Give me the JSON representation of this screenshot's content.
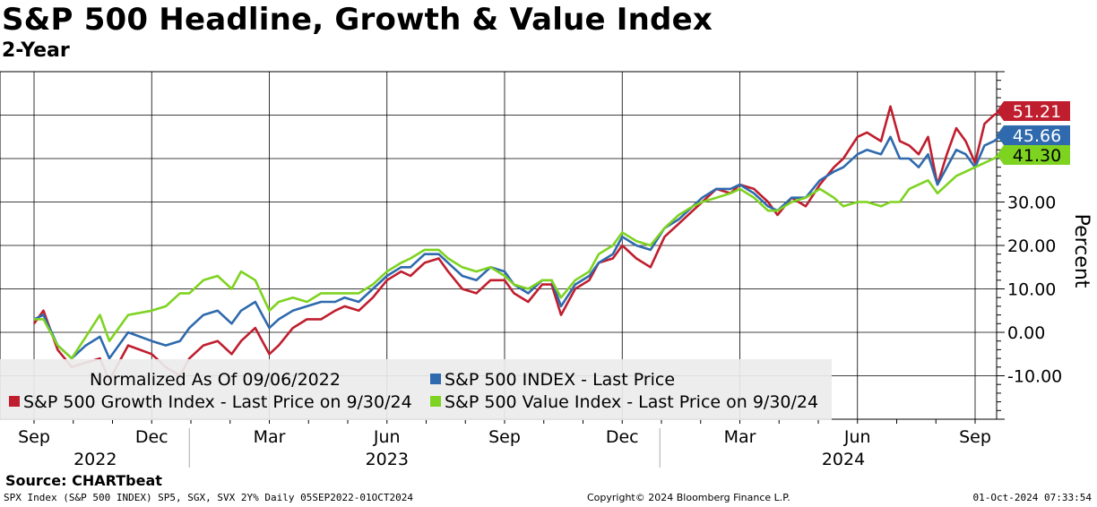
{
  "header": {
    "title": "S&P 500 Headline, Growth & Value Index",
    "subtitle": "2-Year"
  },
  "colors": {
    "growth": "#bf1e2e",
    "headline": "#2e6aad",
    "value": "#7ed321",
    "grid": "#000000",
    "background": "#ffffff"
  },
  "chart_data": {
    "type": "line",
    "ylabel": "Percent",
    "ylim": [
      -20,
      60
    ],
    "y_ticks": [
      "-10.00",
      "0.00",
      "10.00",
      "20.00",
      "30.00"
    ],
    "y_tick_values": [
      -10,
      0,
      10,
      20,
      30
    ],
    "month_ticks": [
      "Sep",
      "Dec",
      "Mar",
      "Jun",
      "Sep",
      "Dec",
      "Mar",
      "Jun",
      "Sep"
    ],
    "month_tick_pos": [
      0.0,
      0.25,
      0.5,
      0.75,
      1.0,
      1.25,
      1.5,
      1.75,
      2.0
    ],
    "year_labels": [
      "2022",
      "2023",
      "2024"
    ],
    "year_label_pos": [
      0.13,
      0.75,
      1.72
    ],
    "x_range_years": [
      0.0,
      2.07
    ],
    "series": [
      {
        "name": "S&P 500 Growth Index - Last Price on 9/30/24",
        "key": "growth",
        "last_label": "51.21",
        "last": 51.21,
        "points": [
          [
            0.0,
            2
          ],
          [
            0.02,
            5
          ],
          [
            0.05,
            -4
          ],
          [
            0.08,
            -8
          ],
          [
            0.11,
            -7
          ],
          [
            0.14,
            -6
          ],
          [
            0.16,
            -11
          ],
          [
            0.2,
            -3
          ],
          [
            0.25,
            -5
          ],
          [
            0.28,
            -8
          ],
          [
            0.31,
            -10
          ],
          [
            0.33,
            -6
          ],
          [
            0.36,
            -3
          ],
          [
            0.39,
            -2
          ],
          [
            0.42,
            -5
          ],
          [
            0.44,
            -2
          ],
          [
            0.47,
            1
          ],
          [
            0.5,
            -5
          ],
          [
            0.52,
            -3
          ],
          [
            0.55,
            1
          ],
          [
            0.58,
            3
          ],
          [
            0.61,
            3
          ],
          [
            0.64,
            5
          ],
          [
            0.66,
            6
          ],
          [
            0.69,
            5
          ],
          [
            0.72,
            8
          ],
          [
            0.75,
            12
          ],
          [
            0.78,
            14
          ],
          [
            0.8,
            13
          ],
          [
            0.83,
            16
          ],
          [
            0.86,
            17
          ],
          [
            0.88,
            14
          ],
          [
            0.91,
            10
          ],
          [
            0.94,
            9
          ],
          [
            0.97,
            12
          ],
          [
            1.0,
            12
          ],
          [
            1.02,
            9
          ],
          [
            1.05,
            7
          ],
          [
            1.08,
            11
          ],
          [
            1.1,
            11
          ],
          [
            1.12,
            4
          ],
          [
            1.15,
            10
          ],
          [
            1.18,
            12
          ],
          [
            1.2,
            16
          ],
          [
            1.23,
            17
          ],
          [
            1.25,
            20
          ],
          [
            1.28,
            17
          ],
          [
            1.31,
            15
          ],
          [
            1.34,
            22
          ],
          [
            1.37,
            25
          ],
          [
            1.4,
            28
          ],
          [
            1.42,
            30
          ],
          [
            1.45,
            33
          ],
          [
            1.48,
            32
          ],
          [
            1.5,
            34
          ],
          [
            1.53,
            33
          ],
          [
            1.56,
            30
          ],
          [
            1.58,
            27
          ],
          [
            1.61,
            31
          ],
          [
            1.64,
            29
          ],
          [
            1.67,
            34
          ],
          [
            1.7,
            38
          ],
          [
            1.72,
            40
          ],
          [
            1.75,
            45
          ],
          [
            1.77,
            46
          ],
          [
            1.8,
            44
          ],
          [
            1.82,
            52
          ],
          [
            1.84,
            44
          ],
          [
            1.86,
            43
          ],
          [
            1.88,
            41
          ],
          [
            1.9,
            45
          ],
          [
            1.92,
            34
          ],
          [
            1.94,
            41
          ],
          [
            1.96,
            47
          ],
          [
            1.98,
            44
          ],
          [
            2.0,
            39
          ],
          [
            2.02,
            48
          ],
          [
            2.04,
            50
          ],
          [
            2.06,
            51.21
          ]
        ]
      },
      {
        "name": "S&P 500 INDEX - Last Price",
        "key": "headline",
        "last_label": "45.66",
        "last": 45.66,
        "points": [
          [
            0.0,
            3
          ],
          [
            0.02,
            4
          ],
          [
            0.05,
            -3
          ],
          [
            0.08,
            -6
          ],
          [
            0.11,
            -3
          ],
          [
            0.14,
            -1
          ],
          [
            0.16,
            -6
          ],
          [
            0.2,
            0
          ],
          [
            0.25,
            -2
          ],
          [
            0.28,
            -3
          ],
          [
            0.31,
            -2
          ],
          [
            0.33,
            1
          ],
          [
            0.36,
            4
          ],
          [
            0.39,
            5
          ],
          [
            0.42,
            2
          ],
          [
            0.44,
            5
          ],
          [
            0.47,
            7
          ],
          [
            0.5,
            1
          ],
          [
            0.52,
            3
          ],
          [
            0.55,
            5
          ],
          [
            0.58,
            6
          ],
          [
            0.61,
            7
          ],
          [
            0.64,
            7
          ],
          [
            0.66,
            8
          ],
          [
            0.69,
            7
          ],
          [
            0.72,
            10
          ],
          [
            0.75,
            13
          ],
          [
            0.78,
            15
          ],
          [
            0.8,
            15
          ],
          [
            0.83,
            18
          ],
          [
            0.86,
            18
          ],
          [
            0.88,
            16
          ],
          [
            0.91,
            13
          ],
          [
            0.94,
            12
          ],
          [
            0.97,
            15
          ],
          [
            1.0,
            14
          ],
          [
            1.02,
            11
          ],
          [
            1.05,
            9
          ],
          [
            1.08,
            12
          ],
          [
            1.1,
            12
          ],
          [
            1.12,
            6
          ],
          [
            1.15,
            11
          ],
          [
            1.18,
            13
          ],
          [
            1.2,
            16
          ],
          [
            1.23,
            18
          ],
          [
            1.25,
            22
          ],
          [
            1.28,
            20
          ],
          [
            1.31,
            19
          ],
          [
            1.34,
            24
          ],
          [
            1.37,
            26
          ],
          [
            1.4,
            29
          ],
          [
            1.42,
            31
          ],
          [
            1.45,
            33
          ],
          [
            1.48,
            33
          ],
          [
            1.5,
            34
          ],
          [
            1.53,
            32
          ],
          [
            1.56,
            29
          ],
          [
            1.58,
            28
          ],
          [
            1.61,
            31
          ],
          [
            1.64,
            31
          ],
          [
            1.67,
            35
          ],
          [
            1.7,
            37
          ],
          [
            1.72,
            38
          ],
          [
            1.75,
            41
          ],
          [
            1.77,
            42
          ],
          [
            1.8,
            41
          ],
          [
            1.82,
            45
          ],
          [
            1.84,
            40
          ],
          [
            1.86,
            40
          ],
          [
            1.88,
            38
          ],
          [
            1.9,
            41
          ],
          [
            1.92,
            34
          ],
          [
            1.94,
            38
          ],
          [
            1.96,
            42
          ],
          [
            1.98,
            41
          ],
          [
            2.0,
            38
          ],
          [
            2.02,
            43
          ],
          [
            2.04,
            44
          ],
          [
            2.06,
            45.66
          ]
        ]
      },
      {
        "name": "S&P 500 Value Index - Last Price on 9/30/24",
        "key": "value",
        "last_label": "41.30",
        "last": 41.3,
        "points": [
          [
            0.0,
            3
          ],
          [
            0.02,
            3
          ],
          [
            0.05,
            -3
          ],
          [
            0.08,
            -6
          ],
          [
            0.11,
            -1
          ],
          [
            0.14,
            4
          ],
          [
            0.16,
            -2
          ],
          [
            0.2,
            4
          ],
          [
            0.25,
            5
          ],
          [
            0.28,
            6
          ],
          [
            0.31,
            9
          ],
          [
            0.33,
            9
          ],
          [
            0.36,
            12
          ],
          [
            0.39,
            13
          ],
          [
            0.42,
            10
          ],
          [
            0.44,
            14
          ],
          [
            0.47,
            12
          ],
          [
            0.5,
            5
          ],
          [
            0.52,
            7
          ],
          [
            0.55,
            8
          ],
          [
            0.58,
            7
          ],
          [
            0.61,
            9
          ],
          [
            0.64,
            9
          ],
          [
            0.66,
            9
          ],
          [
            0.69,
            9
          ],
          [
            0.72,
            11
          ],
          [
            0.75,
            14
          ],
          [
            0.78,
            16
          ],
          [
            0.8,
            17
          ],
          [
            0.83,
            19
          ],
          [
            0.86,
            19
          ],
          [
            0.88,
            17
          ],
          [
            0.91,
            15
          ],
          [
            0.94,
            14
          ],
          [
            0.97,
            15
          ],
          [
            1.0,
            13
          ],
          [
            1.02,
            11
          ],
          [
            1.05,
            10
          ],
          [
            1.08,
            12
          ],
          [
            1.1,
            12
          ],
          [
            1.12,
            8
          ],
          [
            1.15,
            12
          ],
          [
            1.18,
            14
          ],
          [
            1.2,
            18
          ],
          [
            1.23,
            20
          ],
          [
            1.25,
            23
          ],
          [
            1.28,
            21
          ],
          [
            1.31,
            20
          ],
          [
            1.34,
            24
          ],
          [
            1.37,
            27
          ],
          [
            1.4,
            29
          ],
          [
            1.42,
            30
          ],
          [
            1.45,
            31
          ],
          [
            1.48,
            32
          ],
          [
            1.5,
            33
          ],
          [
            1.53,
            31
          ],
          [
            1.56,
            28
          ],
          [
            1.58,
            28
          ],
          [
            1.61,
            30
          ],
          [
            1.64,
            31
          ],
          [
            1.67,
            33
          ],
          [
            1.7,
            31
          ],
          [
            1.72,
            29
          ],
          [
            1.75,
            30
          ],
          [
            1.77,
            30
          ],
          [
            1.8,
            29
          ],
          [
            1.82,
            30
          ],
          [
            1.84,
            30
          ],
          [
            1.86,
            33
          ],
          [
            1.88,
            34
          ],
          [
            1.9,
            35
          ],
          [
            1.92,
            32
          ],
          [
            1.94,
            34
          ],
          [
            1.96,
            36
          ],
          [
            1.98,
            37
          ],
          [
            2.0,
            38
          ],
          [
            2.02,
            39
          ],
          [
            2.04,
            40
          ],
          [
            2.06,
            41.3
          ]
        ]
      }
    ]
  },
  "legend": {
    "normalized_note": "Normalized As Of 09/06/2022",
    "headline": "S&P 500 INDEX - Last Price",
    "growth": "S&P 500 Growth Index - Last Price on 9/30/24",
    "value": "S&P 500 Value Index - Last Price on 9/30/24"
  },
  "footer": {
    "source": "Source: CHARTbeat",
    "left": "SPX Index (S&P 500 INDEX) SP5, SGX, SVX 2Y% Daily 05SEP2022-01OCT2024",
    "middle": "Copyright© 2024 Bloomberg Finance L.P.",
    "right": "01-Oct-2024 07:33:54"
  }
}
